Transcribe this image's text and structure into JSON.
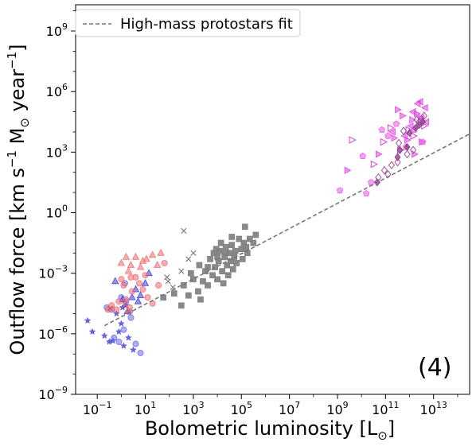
{
  "chart_data": {
    "type": "scatter",
    "xscale": "log",
    "yscale": "log",
    "xlim_log10": [
      -1.9,
      14.5
    ],
    "ylim_log10": [
      -9,
      10.3
    ],
    "xlabel_main": "Bolometric luminosity [L",
    "xlabel_sub": "⊙",
    "xlabel_end": "]",
    "ylabel_parts": [
      "Outflow force [km s",
      "−1",
      " M",
      "⊙",
      " year",
      "−1",
      "]"
    ],
    "xticks": [
      {
        "exp": -1,
        "base": "10",
        "sup": "−1"
      },
      {
        "exp": 1,
        "base": "10",
        "sup": "1"
      },
      {
        "exp": 3,
        "base": "10",
        "sup": "3"
      },
      {
        "exp": 5,
        "base": "10",
        "sup": "5"
      },
      {
        "exp": 7,
        "base": "10",
        "sup": "7"
      },
      {
        "exp": 9,
        "base": "10",
        "sup": "9"
      },
      {
        "exp": 11,
        "base": "10",
        "sup": "11"
      },
      {
        "exp": 13,
        "base": "10",
        "sup": "13"
      }
    ],
    "yticks": [
      {
        "exp": -9,
        "base": "10",
        "sup": "−9"
      },
      {
        "exp": -6,
        "base": "10",
        "sup": "−6"
      },
      {
        "exp": -3,
        "base": "10",
        "sup": "−3"
      },
      {
        "exp": 0,
        "base": "10",
        "sup": "0"
      },
      {
        "exp": 3,
        "base": "10",
        "sup": "3"
      },
      {
        "exp": 6,
        "base": "10",
        "sup": "6"
      },
      {
        "exp": 9,
        "base": "10",
        "sup": "9"
      }
    ],
    "panel_label": "(4)",
    "legend": {
      "placement": "top-left",
      "entries": [
        {
          "label": "High-mass protostars fit",
          "style": "dashed",
          "color": "#777777"
        }
      ]
    },
    "fit_line": {
      "name": "High-mass protostars fit",
      "color": "#777777",
      "x_log10": [
        -0.7,
        14.5
      ],
      "y_log10": [
        -5.6,
        3.9
      ]
    },
    "series": [
      {
        "marker": "star",
        "color": "#4b4bdb",
        "points": [
          [
            -1.4,
            -5.35
          ],
          [
            -1.2,
            -5.9
          ],
          [
            -0.7,
            -6.1
          ],
          [
            -0.5,
            -6.4
          ],
          [
            -0.35,
            -6.35
          ],
          [
            -0.1,
            -5.9
          ],
          [
            0.1,
            -6.6
          ],
          [
            0.3,
            -6.2
          ],
          [
            0.0,
            -5.5
          ],
          [
            -0.2,
            -5.0
          ],
          [
            0.5,
            -6.8
          ],
          [
            0.2,
            -4.6
          ],
          [
            0.05,
            -4.7
          ]
        ]
      },
      {
        "marker": "circle",
        "color": "#6b6bef",
        "points": [
          [
            -0.6,
            -4.7
          ],
          [
            -0.3,
            -6.2
          ],
          [
            -0.1,
            -6.4
          ],
          [
            0.1,
            -5.8
          ],
          [
            0.2,
            -4.4
          ],
          [
            0.35,
            -4.9
          ],
          [
            0.6,
            -6.5
          ],
          [
            0.8,
            -6.95
          ],
          [
            0.4,
            -5.2
          ],
          [
            0.0,
            -4.2
          ],
          [
            -0.4,
            -4.8
          ],
          [
            0.15,
            -3.5
          ]
        ]
      },
      {
        "marker": "triangle",
        "color": "#3a3ae0",
        "points": [
          [
            -0.25,
            -3.4
          ],
          [
            0.05,
            -4.3
          ],
          [
            0.25,
            -4.9
          ],
          [
            0.45,
            -4.2
          ],
          [
            0.6,
            -3.8
          ],
          [
            0.7,
            -4.4
          ],
          [
            0.8,
            -4.1
          ],
          [
            1.0,
            -3.5
          ],
          [
            1.15,
            -3.0
          ]
        ]
      },
      {
        "marker": "circle",
        "color": "#f26b6b",
        "points": [
          [
            -0.55,
            -4.8
          ],
          [
            -0.4,
            -4.6
          ],
          [
            -0.2,
            -4.8
          ],
          [
            0.0,
            -3.3
          ],
          [
            0.1,
            -3.6
          ],
          [
            0.2,
            -4.3
          ],
          [
            0.3,
            -4.9
          ],
          [
            0.45,
            -3.9
          ],
          [
            0.6,
            -3.2
          ],
          [
            0.75,
            -3.5
          ],
          [
            0.9,
            -3.8
          ],
          [
            1.1,
            -4.2
          ],
          [
            1.3,
            -4.5
          ],
          [
            1.55,
            -3.6
          ],
          [
            1.0,
            -3.1
          ],
          [
            0.4,
            -3.2
          ],
          [
            -0.1,
            -4.4
          ],
          [
            1.8,
            -2.5
          ],
          [
            0.35,
            -4.7
          ]
        ]
      },
      {
        "marker": "triangle",
        "color": "#f26b6b",
        "points": [
          [
            0.0,
            -2.5
          ],
          [
            0.2,
            -2.2
          ],
          [
            0.4,
            -2.6
          ],
          [
            0.6,
            -2.2
          ],
          [
            0.8,
            -2.7
          ],
          [
            1.05,
            -2.3
          ],
          [
            1.3,
            -2.1
          ],
          [
            1.5,
            -2.6
          ],
          [
            1.65,
            -2.0
          ],
          [
            0.3,
            -2.9
          ],
          [
            0.9,
            -2.4
          ]
        ]
      },
      {
        "marker": "cross",
        "color": "#e05050",
        "points": [
          [
            -0.45,
            -4.75
          ],
          [
            0.15,
            -4.55
          ]
        ]
      },
      {
        "marker": "square",
        "color": "#7f7f7f",
        "points": [
          [
            1.75,
            -4.2
          ],
          [
            2.2,
            -4.0
          ],
          [
            2.6,
            -3.6
          ],
          [
            2.8,
            -4.1
          ],
          [
            2.9,
            -3.0
          ],
          [
            3.0,
            -3.3
          ],
          [
            3.2,
            -3.9
          ],
          [
            3.25,
            -2.6
          ],
          [
            3.4,
            -3.4
          ],
          [
            3.5,
            -2.9
          ],
          [
            3.6,
            -3.6
          ],
          [
            3.7,
            -2.3
          ],
          [
            3.8,
            -3.1
          ],
          [
            3.85,
            -2.0
          ],
          [
            3.9,
            -2.7
          ],
          [
            4.0,
            -3.3
          ],
          [
            4.05,
            -2.4
          ],
          [
            4.1,
            -1.9
          ],
          [
            4.2,
            -2.9
          ],
          [
            4.25,
            -3.5
          ],
          [
            4.3,
            -2.2
          ],
          [
            4.35,
            -1.7
          ],
          [
            4.4,
            -2.6
          ],
          [
            4.45,
            -3.1
          ],
          [
            4.5,
            -2.0
          ],
          [
            4.55,
            -2.4
          ],
          [
            4.6,
            -1.6
          ],
          [
            4.65,
            -2.8
          ],
          [
            4.7,
            -2.2
          ],
          [
            4.75,
            -1.9
          ],
          [
            4.8,
            -2.5
          ],
          [
            4.9,
            -1.3
          ],
          [
            5.0,
            -1.8
          ],
          [
            5.05,
            -2.3
          ],
          [
            5.1,
            -1.5
          ],
          [
            5.2,
            -1.7
          ],
          [
            5.25,
            -2.0
          ],
          [
            5.35,
            -1.3
          ],
          [
            5.5,
            -1.5
          ],
          [
            5.6,
            -1.1
          ],
          [
            4.15,
            -1.5
          ],
          [
            3.95,
            -1.8
          ],
          [
            4.6,
            -1.2
          ],
          [
            5.15,
            -0.7
          ],
          [
            3.3,
            -4.3
          ],
          [
            2.5,
            -4.6
          ],
          [
            4.35,
            -2.0
          ],
          [
            4.0,
            -2.2
          ],
          [
            3.6,
            -2.7
          ]
        ]
      },
      {
        "marker": "cross",
        "color": "#7f7f7f",
        "points": [
          [
            1.9,
            -3.2
          ],
          [
            2.15,
            -3.7
          ],
          [
            2.5,
            -2.9
          ],
          [
            2.6,
            -0.9
          ],
          [
            3.0,
            -2.0
          ],
          [
            2.8,
            -2.3
          ],
          [
            1.95,
            -3.4
          ]
        ]
      },
      {
        "marker": "triangle-right",
        "color": "#e040e0",
        "points": [
          [
            9.4,
            2.1
          ],
          [
            10.7,
            2.9
          ],
          [
            11.35,
            3.7
          ],
          [
            11.5,
            5.1
          ],
          [
            11.7,
            4.8
          ],
          [
            12.1,
            4.6
          ],
          [
            12.3,
            4.9
          ],
          [
            12.45,
            4.7
          ],
          [
            12.5,
            3.5
          ],
          [
            12.2,
            2.9
          ],
          [
            11.9,
            3.6
          ]
        ]
      },
      {
        "marker": "triangle-right-open",
        "color": "#e040e0",
        "points": [
          [
            9.6,
            3.6
          ],
          [
            10.5,
            2.4
          ],
          [
            10.9,
            3.5
          ],
          [
            11.2,
            4.2
          ],
          [
            11.6,
            3.1
          ],
          [
            11.95,
            4.1
          ],
          [
            12.15,
            3.8
          ],
          [
            12.6,
            4.3
          ]
        ]
      },
      {
        "marker": "triangle-left",
        "color": "#e040e0",
        "points": [
          [
            11.3,
            4.0
          ],
          [
            11.8,
            3.8
          ],
          [
            12.05,
            4.3
          ],
          [
            12.35,
            5.4
          ],
          [
            12.5,
            4.7
          ],
          [
            12.65,
            5.2
          ],
          [
            12.7,
            4.5
          ],
          [
            12.45,
            5.5
          ],
          [
            12.15,
            5.0
          ]
        ]
      },
      {
        "marker": "pentagon",
        "color": "#ea55ea",
        "points": [
          [
            9.1,
            1.1
          ],
          [
            10.05,
            2.8
          ],
          [
            10.4,
            1.5
          ],
          [
            10.85,
            4.1
          ],
          [
            11.1,
            3.8
          ],
          [
            11.45,
            4.4
          ],
          [
            11.85,
            3.25
          ],
          [
            12.2,
            4.1
          ],
          [
            12.55,
            3.5
          ],
          [
            10.2,
            0.95
          ]
        ]
      },
      {
        "marker": "diamond-open",
        "color": "#a052a0",
        "points": [
          [
            10.7,
            1.75
          ],
          [
            10.95,
            2.1
          ],
          [
            11.1,
            1.9
          ],
          [
            11.5,
            2.5
          ],
          [
            11.9,
            2.9
          ],
          [
            12.15,
            3.1
          ],
          [
            12.4,
            4.5
          ],
          [
            12.6,
            4.8
          ],
          [
            12.3,
            4.6
          ],
          [
            11.75,
            4.05
          ],
          [
            11.25,
            2.35
          ],
          [
            11.55,
            3.45
          ]
        ]
      },
      {
        "marker": "diamond",
        "color": "#8a3a8a",
        "points": [
          [
            10.65,
            1.5
          ],
          [
            11.5,
            2.75
          ],
          [
            11.9,
            3.25
          ],
          [
            12.25,
            4.2
          ],
          [
            12.4,
            4.35
          ],
          [
            12.55,
            4.5
          ],
          [
            12.0,
            3.95
          ],
          [
            11.6,
            3.1
          ]
        ]
      }
    ]
  }
}
